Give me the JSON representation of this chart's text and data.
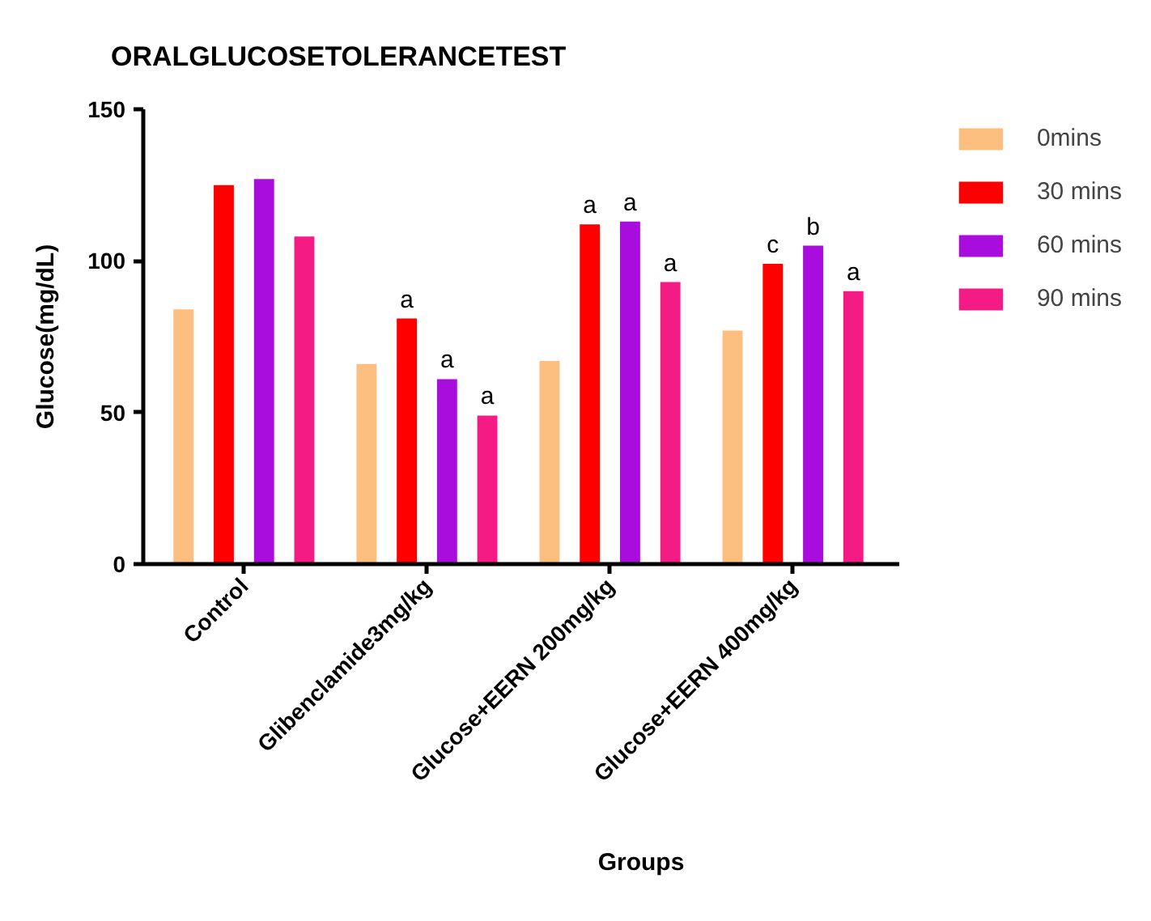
{
  "chart_data": {
    "type": "bar",
    "title": "ORALGLUCOSETOLERANCETEST",
    "xlabel": "Groups",
    "ylabel": "Glucose(mg/dL)",
    "categories": [
      "Control",
      "Glibenclamide3mg/kg",
      "Glucose+EERN 200mg/kg",
      "Glucose+EERN 400mg/kg"
    ],
    "series": [
      {
        "name": "0mins",
        "color": "#fdbf80",
        "values": [
          84,
          66,
          67,
          77
        ]
      },
      {
        "name": "30 mins",
        "color": "#ff0000",
        "values": [
          125,
          81,
          112,
          99
        ],
        "value_labels": [
          null,
          "a",
          "a",
          "c"
        ]
      },
      {
        "name": "60 mins",
        "color": "#a90ddd",
        "values": [
          127,
          61,
          113,
          105
        ],
        "value_labels": [
          null,
          "a",
          "a",
          "b"
        ]
      },
      {
        "name": "90 mins",
        "color": "#f51b85",
        "values": [
          108,
          49,
          93,
          90
        ],
        "value_labels": [
          null,
          "a",
          "a",
          "a"
        ]
      }
    ],
    "ylim": [
      0,
      150
    ],
    "yticks": [
      0,
      50,
      100,
      150
    ],
    "legend": "top right"
  }
}
